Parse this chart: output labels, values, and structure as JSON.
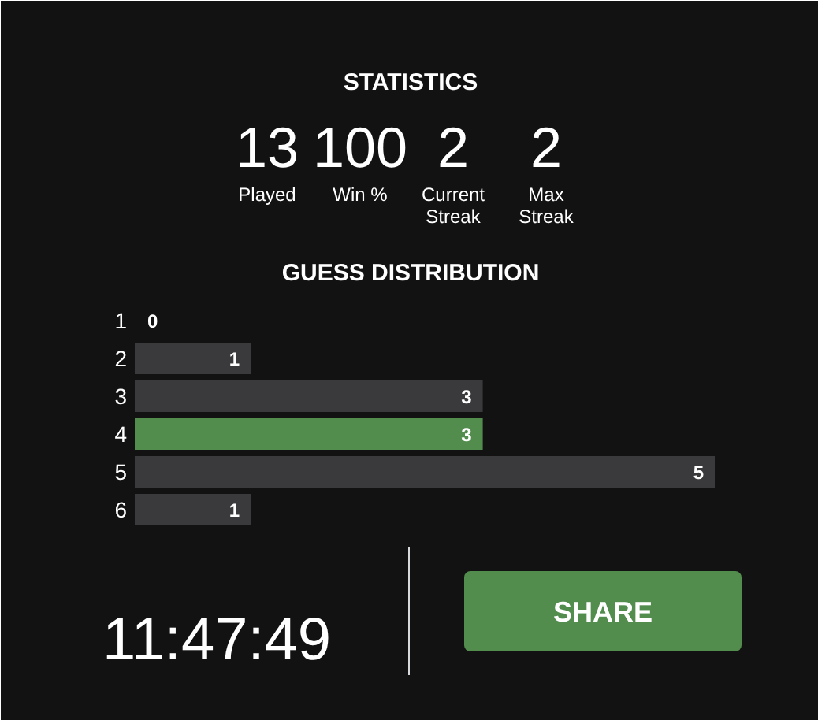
{
  "chart_data": {
    "type": "bar",
    "orientation": "horizontal",
    "title": "GUESS DISTRIBUTION",
    "categories": [
      "1",
      "2",
      "3",
      "4",
      "5",
      "6"
    ],
    "values": [
      0,
      1,
      3,
      3,
      5,
      1
    ],
    "colors": [
      "#3a3a3c",
      "#3a3a3c",
      "#3a3a3c",
      "#538d4e",
      "#3a3a3c",
      "#3a3a3c"
    ],
    "data_labels": true,
    "annotations": [
      "STATISTICS",
      "13",
      "Played",
      "100",
      "Win %",
      "2",
      "Current Streak",
      "2",
      "Max Streak",
      "11:47:49",
      "SHARE"
    ]
  }
}
